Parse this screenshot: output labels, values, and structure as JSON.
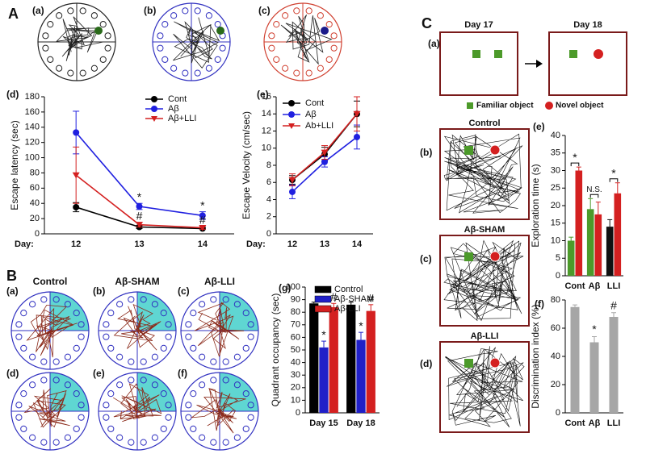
{
  "panel_labels": [
    "A",
    "(a)",
    "(b)",
    "(c)",
    "(d)",
    "(e)",
    "B",
    "(a)",
    "(b)",
    "(c)",
    "(d)",
    "(e)",
    "(f)",
    "(g)",
    "C",
    "(a)",
    "(b)",
    "(c)",
    "(d)",
    "(e)",
    "(f)"
  ],
  "maze_titles": [
    "Control",
    "Aβ-SHAM",
    "Aβ-LLI"
  ],
  "track_titles": [
    "Control",
    "Aβ-SHAM",
    "Aβ-LLI"
  ],
  "object_days": [
    "Day 17",
    "Day 18"
  ],
  "chart_data": [
    {
      "type": "line",
      "y_label": "Escape latency (sec)",
      "x_label": "Day:",
      "categories": [
        "12",
        "13",
        "14"
      ],
      "ylim": [
        0,
        180
      ],
      "yticks": [
        0,
        20,
        40,
        60,
        80,
        100,
        120,
        140,
        160,
        180
      ],
      "legend": "upper right",
      "series": [
        {
          "name": "Cont",
          "color": "#000000",
          "marker": "circle",
          "values": [
            35,
            9,
            7
          ],
          "errors": [
            6,
            2,
            1
          ]
        },
        {
          "name": "Aβ",
          "color": "#2020e0",
          "marker": "circle",
          "values": [
            133,
            36,
            24
          ],
          "errors": [
            28,
            4,
            5
          ]
        },
        {
          "name": "Aβ+LLI",
          "color": "#d42020",
          "marker": "triangle",
          "values": [
            77,
            12,
            8
          ],
          "errors": [
            37,
            3,
            2
          ]
        }
      ],
      "annotations": [
        {
          "text": "*",
          "series": 1,
          "index": 1
        },
        {
          "text": "*",
          "series": 1,
          "index": 2
        },
        {
          "text": "#",
          "series": 2,
          "index": 1
        },
        {
          "text": "#",
          "series": 2,
          "index": 2
        }
      ]
    },
    {
      "type": "line",
      "y_label": "Escape Velocity (cm/sec)",
      "x_label": "Day:",
      "categories": [
        "12",
        "13",
        "14"
      ],
      "ylim": [
        0,
        16
      ],
      "yticks": [
        0,
        2,
        4,
        6,
        8,
        10,
        12,
        14,
        16
      ],
      "legend": "upper left",
      "series": [
        {
          "name": "Cont",
          "color": "#000000",
          "marker": "circle",
          "values": [
            6.3,
            9.3,
            14
          ],
          "errors": [
            0.5,
            0.8,
            1.5
          ]
        },
        {
          "name": "Aβ",
          "color": "#2020e0",
          "marker": "circle",
          "values": [
            4.9,
            8.4,
            11.3
          ],
          "errors": [
            0.8,
            0.6,
            1.4
          ]
        },
        {
          "name": "Ab+LLI",
          "color": "#d42020",
          "marker": "triangle",
          "values": [
            6.3,
            9.5,
            14
          ],
          "errors": [
            0.7,
            0.8,
            2
          ]
        }
      ]
    },
    {
      "type": "bar",
      "y_label": "Quadrant occupancy (sec)",
      "categories": [
        "Day 15",
        "Day 18"
      ],
      "ylim": [
        0,
        100
      ],
      "yticks": [
        0,
        10,
        20,
        30,
        40,
        50,
        60,
        70,
        80,
        90,
        100
      ],
      "legend": "upper right",
      "series": [
        {
          "name": "Control",
          "color": "#000000",
          "values": [
            87,
            86
          ],
          "errors": [
            1,
            2
          ]
        },
        {
          "name": "Aβ-SHAM",
          "color": "#2020c8",
          "values": [
            52,
            58
          ],
          "errors": [
            5,
            6
          ]
        },
        {
          "name": "Aβ-LLI",
          "color": "#d42020",
          "values": [
            84,
            81
          ],
          "errors": [
            3,
            5
          ]
        }
      ],
      "annotations": [
        {
          "text": "*",
          "series": 1,
          "index": 0
        },
        {
          "text": "*",
          "series": 1,
          "index": 1
        },
        {
          "text": "#",
          "series": 2,
          "index": 0
        },
        {
          "text": "#",
          "series": 2,
          "index": 1
        }
      ]
    },
    {
      "type": "bar",
      "y_label": "Exploration time (s)",
      "categories": [
        "Cont",
        "Aβ",
        "LLI"
      ],
      "ylim": [
        0,
        40
      ],
      "yticks": [
        0,
        5,
        10,
        15,
        20,
        25,
        30,
        35,
        40
      ],
      "legend": "outside",
      "series": [
        {
          "name": "Familiar object",
          "color": "#4c9a2a",
          "colors": [
            "#4c9a2a",
            "#4c9a2a",
            "#111111"
          ],
          "marker": "square",
          "values": [
            10,
            19,
            14
          ],
          "errors": [
            1,
            3,
            2
          ]
        },
        {
          "name": "Novel object",
          "color": "#d42020",
          "marker": "circle",
          "values": [
            30,
            17.5,
            23.5
          ],
          "errors": [
            1,
            3.5,
            3
          ]
        }
      ],
      "annotations": [
        {
          "text": "*",
          "index": 0
        },
        {
          "text": "N.S.",
          "index": 1
        },
        {
          "text": "*",
          "index": 2
        }
      ]
    },
    {
      "type": "bar",
      "y_label": "Discrimination index (%)",
      "categories": [
        "Cont",
        "Aβ",
        "LLI"
      ],
      "ylim": [
        0,
        80
      ],
      "yticks": [
        0,
        20,
        40,
        60,
        80
      ],
      "color": "#a6a6a6",
      "values": [
        75,
        50,
        68
      ],
      "errors": [
        1.5,
        4,
        3
      ],
      "annotations": [
        {
          "text": "*",
          "index": 1
        },
        {
          "text": "#",
          "index": 2
        }
      ]
    }
  ]
}
